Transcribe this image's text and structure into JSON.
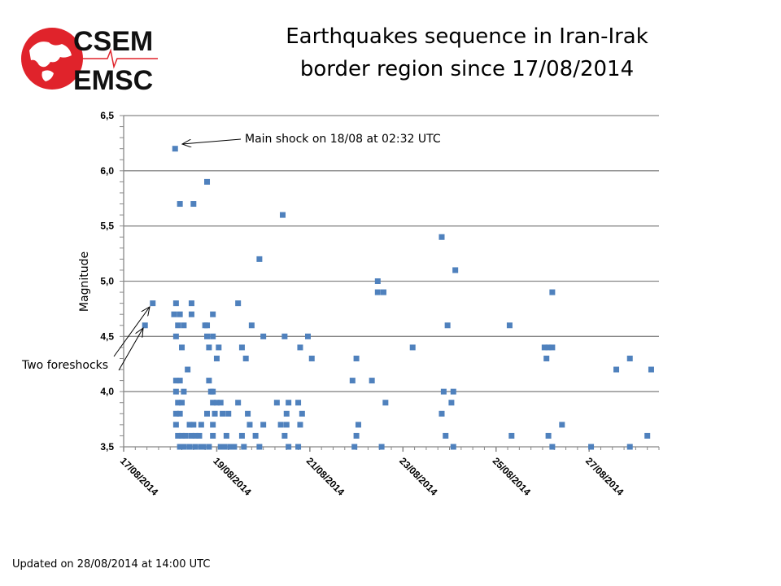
{
  "logo": {
    "line1": "CSEM",
    "line2": "EMSC",
    "color": "#e0232b"
  },
  "title_lines": [
    "Earthquakes sequence in Iran-Irak",
    "border region since 17/08/2014"
  ],
  "footer": "Updated on 28/08/2014 at 14:00 UTC",
  "chart_data": {
    "type": "scatter",
    "title": "Earthquakes sequence in Iran-Irak border region since 17/08/2014",
    "xlabel": "",
    "ylabel": "Magnitude",
    "xlim": [
      "2014-08-17T00:00",
      "2014-08-28T12:00"
    ],
    "ylim": [
      3.5,
      6.5
    ],
    "x_ticks": [
      "17/08/2014",
      "19/08/2014",
      "21/08/2014",
      "23/08/2014",
      "25/08/2014",
      "27/08/2014"
    ],
    "x_tick_dates": [
      "2014-08-17T00:00",
      "2014-08-19T00:00",
      "2014-08-21T00:00",
      "2014-08-23T00:00",
      "2014-08-25T00:00",
      "2014-08-27T00:00"
    ],
    "y_ticks": [
      "3,5",
      "4,0",
      "4,5",
      "5,0",
      "5,5",
      "6,0",
      "6,5"
    ],
    "y_tick_values": [
      3.5,
      4.0,
      4.5,
      5.0,
      5.5,
      6.0,
      6.5
    ],
    "grid": "horizontal",
    "marker_color": "#4f81bd",
    "annotations": [
      {
        "text": "Main shock on 18/08 at 02:32 UTC",
        "points_to": [
          "2014-08-18T02:32",
          6.2
        ]
      },
      {
        "text": "Two foreshocks",
        "points_to": [
          [
            "2014-08-17T11:00",
            4.6
          ],
          [
            "2014-08-17T15:00",
            4.8
          ]
        ]
      }
    ],
    "points": [
      [
        "2014-08-17T11:00",
        4.6
      ],
      [
        "2014-08-17T15:00",
        4.8
      ],
      [
        "2014-08-18T02:32",
        6.2
      ],
      [
        "2014-08-18T05:00",
        5.7
      ],
      [
        "2014-08-18T12:00",
        5.7
      ],
      [
        "2014-08-18T19:00",
        5.9
      ],
      [
        "2014-08-20T10:00",
        5.6
      ],
      [
        "2014-08-19T22:00",
        5.2
      ],
      [
        "2014-08-23T20:00",
        5.4
      ],
      [
        "2014-08-24T03:00",
        5.1
      ],
      [
        "2014-08-22T11:00",
        5.0
      ],
      [
        "2014-08-22T11:00",
        4.9
      ],
      [
        "2014-08-22T14:00",
        4.9
      ],
      [
        "2014-08-26T05:00",
        4.9
      ],
      [
        "2014-08-18T03:00",
        4.8
      ],
      [
        "2014-08-18T11:00",
        4.8
      ],
      [
        "2014-08-19T11:00",
        4.8
      ],
      [
        "2014-08-18T02:00",
        4.7
      ],
      [
        "2014-08-18T05:00",
        4.7
      ],
      [
        "2014-08-18T11:00",
        4.7
      ],
      [
        "2014-08-18T22:00",
        4.7
      ],
      [
        "2014-08-18T04:00",
        4.6
      ],
      [
        "2014-08-18T07:00",
        4.6
      ],
      [
        "2014-08-18T18:00",
        4.6
      ],
      [
        "2014-08-18T19:00",
        4.6
      ],
      [
        "2014-08-19T18:00",
        4.6
      ],
      [
        "2014-08-23T23:00",
        4.6
      ],
      [
        "2014-08-25T07:00",
        4.6
      ],
      [
        "2014-08-18T03:00",
        4.5
      ],
      [
        "2014-08-18T19:00",
        4.5
      ],
      [
        "2014-08-18T22:00",
        4.5
      ],
      [
        "2014-08-20T00:00",
        4.5
      ],
      [
        "2014-08-20T11:00",
        4.5
      ],
      [
        "2014-08-20T23:00",
        4.5
      ],
      [
        "2014-08-18T06:00",
        4.4
      ],
      [
        "2014-08-18T20:00",
        4.4
      ],
      [
        "2014-08-19T01:00",
        4.4
      ],
      [
        "2014-08-19T13:00",
        4.4
      ],
      [
        "2014-08-20T19:00",
        4.4
      ],
      [
        "2014-08-23T05:00",
        4.4
      ],
      [
        "2014-08-26T01:00",
        4.4
      ],
      [
        "2014-08-26T03:00",
        4.4
      ],
      [
        "2014-08-26T05:00",
        4.4
      ],
      [
        "2014-08-19T00:00",
        4.3
      ],
      [
        "2014-08-19T15:00",
        4.3
      ],
      [
        "2014-08-21T01:00",
        4.3
      ],
      [
        "2014-08-22T00:00",
        4.3
      ],
      [
        "2014-08-26T02:00",
        4.3
      ],
      [
        "2014-08-27T21:00",
        4.3
      ],
      [
        "2014-08-18T09:00",
        4.2
      ],
      [
        "2014-08-27T14:00",
        4.2
      ],
      [
        "2014-08-28T08:00",
        4.2
      ],
      [
        "2014-08-18T03:00",
        4.1
      ],
      [
        "2014-08-18T05:00",
        4.1
      ],
      [
        "2014-08-18T20:00",
        4.1
      ],
      [
        "2014-08-21T22:00",
        4.1
      ],
      [
        "2014-08-22T08:00",
        4.1
      ],
      [
        "2014-08-18T03:00",
        4.0
      ],
      [
        "2014-08-18T07:00",
        4.0
      ],
      [
        "2014-08-18T21:00",
        4.0
      ],
      [
        "2014-08-18T22:00",
        4.0
      ],
      [
        "2014-08-23T21:00",
        4.0
      ],
      [
        "2014-08-24T02:00",
        4.0
      ],
      [
        "2014-08-18T04:00",
        3.9
      ],
      [
        "2014-08-18T06:00",
        3.9
      ],
      [
        "2014-08-18T22:00",
        3.9
      ],
      [
        "2014-08-19T00:00",
        3.9
      ],
      [
        "2014-08-19T02:00",
        3.9
      ],
      [
        "2014-08-19T11:00",
        3.9
      ],
      [
        "2014-08-20T07:00",
        3.9
      ],
      [
        "2014-08-20T13:00",
        3.9
      ],
      [
        "2014-08-20T18:00",
        3.9
      ],
      [
        "2014-08-22T15:00",
        3.9
      ],
      [
        "2014-08-24T01:00",
        3.9
      ],
      [
        "2014-08-18T03:00",
        3.8
      ],
      [
        "2014-08-18T05:00",
        3.8
      ],
      [
        "2014-08-18T19:00",
        3.8
      ],
      [
        "2014-08-18T23:00",
        3.8
      ],
      [
        "2014-08-19T03:00",
        3.8
      ],
      [
        "2014-08-19T06:00",
        3.8
      ],
      [
        "2014-08-19T16:00",
        3.8
      ],
      [
        "2014-08-20T12:00",
        3.8
      ],
      [
        "2014-08-20T20:00",
        3.8
      ],
      [
        "2014-08-23T20:00",
        3.8
      ],
      [
        "2014-08-18T03:00",
        3.7
      ],
      [
        "2014-08-18T10:00",
        3.7
      ],
      [
        "2014-08-18T12:00",
        3.7
      ],
      [
        "2014-08-18T16:00",
        3.7
      ],
      [
        "2014-08-18T22:00",
        3.7
      ],
      [
        "2014-08-19T17:00",
        3.7
      ],
      [
        "2014-08-20T00:00",
        3.7
      ],
      [
        "2014-08-20T09:00",
        3.7
      ],
      [
        "2014-08-20T12:00",
        3.7
      ],
      [
        "2014-08-20T19:00",
        3.7
      ],
      [
        "2014-08-22T01:00",
        3.7
      ],
      [
        "2014-08-26T10:00",
        3.7
      ],
      [
        "2014-08-18T04:00",
        3.6
      ],
      [
        "2014-08-18T06:00",
        3.6
      ],
      [
        "2014-08-18T08:00",
        3.6
      ],
      [
        "2014-08-18T11:00",
        3.6
      ],
      [
        "2014-08-18T13:00",
        3.6
      ],
      [
        "2014-08-18T15:00",
        3.6
      ],
      [
        "2014-08-18T22:00",
        3.6
      ],
      [
        "2014-08-19T05:00",
        3.6
      ],
      [
        "2014-08-19T13:00",
        3.6
      ],
      [
        "2014-08-19T20:00",
        3.6
      ],
      [
        "2014-08-20T11:00",
        3.6
      ],
      [
        "2014-08-22T00:00",
        3.6
      ],
      [
        "2014-08-23T22:00",
        3.6
      ],
      [
        "2014-08-25T08:00",
        3.6
      ],
      [
        "2014-08-26T03:00",
        3.6
      ],
      [
        "2014-08-28T06:00",
        3.6
      ],
      [
        "2014-08-18T05:00",
        3.5
      ],
      [
        "2014-08-18T07:00",
        3.5
      ],
      [
        "2014-08-18T10:00",
        3.5
      ],
      [
        "2014-08-18T13:00",
        3.5
      ],
      [
        "2014-08-18T16:00",
        3.5
      ],
      [
        "2014-08-18T17:00",
        3.5
      ],
      [
        "2014-08-18T20:00",
        3.5
      ],
      [
        "2014-08-19T02:00",
        3.5
      ],
      [
        "2014-08-19T04:00",
        3.5
      ],
      [
        "2014-08-19T07:00",
        3.5
      ],
      [
        "2014-08-19T09:00",
        3.5
      ],
      [
        "2014-08-19T14:00",
        3.5
      ],
      [
        "2014-08-19T22:00",
        3.5
      ],
      [
        "2014-08-20T13:00",
        3.5
      ],
      [
        "2014-08-20T18:00",
        3.5
      ],
      [
        "2014-08-21T23:00",
        3.5
      ],
      [
        "2014-08-22T13:00",
        3.5
      ],
      [
        "2014-08-24T02:00",
        3.5
      ],
      [
        "2014-08-26T05:00",
        3.5
      ],
      [
        "2014-08-27T01:00",
        3.5
      ],
      [
        "2014-08-27T21:00",
        3.5
      ]
    ]
  }
}
